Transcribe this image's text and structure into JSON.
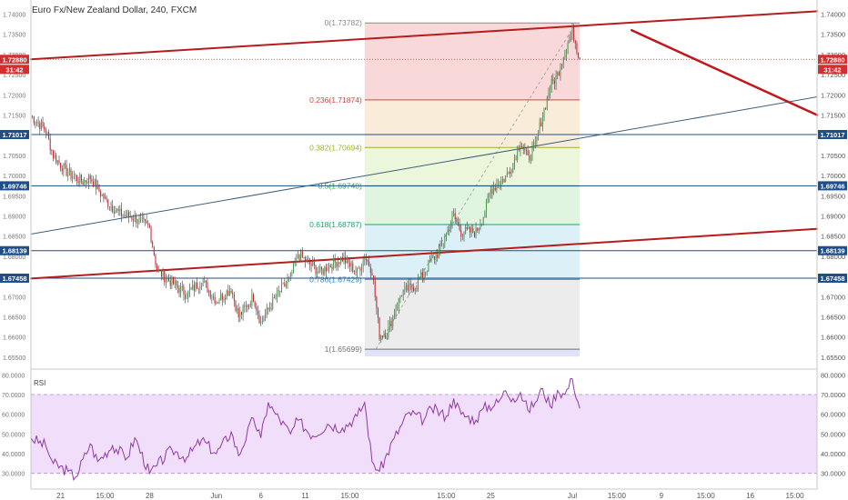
{
  "chart_data": {
    "type": "candlestick",
    "title": "Euro Fx/New Zealand Dollar, 240, FXCM",
    "price_axis": {
      "ylim": [
        1.6525,
        1.7435
      ],
      "ticks": [
        "1.65500",
        "1.66000",
        "1.66500",
        "1.67000",
        "1.67500",
        "1.68000",
        "1.68500",
        "1.69000",
        "1.69500",
        "1.70000",
        "1.70500",
        "1.71000",
        "1.71500",
        "1.72000",
        "1.72500",
        "1.73000",
        "1.73500",
        "1.74000"
      ]
    },
    "time_axis": {
      "labels": [
        {
          "t": 4,
          "text": "21"
        },
        {
          "t": 10,
          "text": "15:00"
        },
        {
          "t": 16,
          "text": "28"
        },
        {
          "t": 25,
          "text": "Jun"
        },
        {
          "t": 31,
          "text": "6"
        },
        {
          "t": 37,
          "text": "11"
        },
        {
          "t": 43,
          "text": "15:00"
        },
        {
          "t": 56,
          "text": "15:00"
        },
        {
          "t": 62,
          "text": "25"
        },
        {
          "t": 73,
          "text": "Jul"
        },
        {
          "t": 79,
          "text": "15:00"
        },
        {
          "t": 85,
          "text": "9"
        },
        {
          "t": 91,
          "text": "15:00"
        },
        {
          "t": 97,
          "text": "16"
        },
        {
          "t": 103,
          "text": "15:00"
        }
      ],
      "tmax": 106
    },
    "last_price": {
      "value": "1.72880",
      "countdown": "31:42",
      "price": 1.7288,
      "color": "#d32f2f"
    },
    "horizontal_levels": [
      {
        "price": 1.71017,
        "label": "1.71017",
        "color": "#1e4f8a"
      },
      {
        "price": 1.69746,
        "label": "1.69746",
        "color": "#1e4f8a"
      },
      {
        "price": 1.68139,
        "label": "1.68139",
        "color": "#1e4f8a"
      },
      {
        "price": 1.67458,
        "label": "1.67458",
        "color": "#1e4f8a"
      }
    ],
    "trend_lines": [
      {
        "t1": 0,
        "p1": 1.7288,
        "t2": 106,
        "p2": 1.7407,
        "color": "#b71c1c",
        "width": 2
      },
      {
        "t1": 0,
        "p1": 1.6745,
        "t2": 106,
        "p2": 1.6868,
        "color": "#b71c1c",
        "width": 2
      },
      {
        "t1": 0,
        "p1": 1.6855,
        "t2": 106,
        "p2": 1.7195,
        "color": "#3d5f7a",
        "width": 1
      },
      {
        "t1": 81,
        "p1": 1.736,
        "t2": 106,
        "p2": 1.715,
        "color": "#c0161c",
        "width": 2.5
      }
    ],
    "fibonacci": {
      "t_start": 45,
      "t_end": 74,
      "bands": [
        {
          "from": 0,
          "to": 0.236,
          "color": "#f2b8b8"
        },
        {
          "from": 0.236,
          "to": 0.382,
          "color": "#f4ddb9"
        },
        {
          "from": 0.382,
          "to": 0.5,
          "color": "#dcefbe"
        },
        {
          "from": 0.5,
          "to": 0.618,
          "color": "#c6ecc6"
        },
        {
          "from": 0.618,
          "to": 0.786,
          "color": "#bfe6f0"
        },
        {
          "from": 0.786,
          "to": 1,
          "color": "#dcdcdc"
        },
        {
          "from": 1,
          "to": 1.0225,
          "color": "#c8c8f2"
        }
      ],
      "levels": [
        {
          "ratio": 0,
          "label": "0(1.73782)",
          "price": 1.73782,
          "color": "#8a8a8a"
        },
        {
          "ratio": 0.236,
          "label": "0.236(1.71874)",
          "price": 1.71874,
          "color": "#d64545"
        },
        {
          "ratio": 0.382,
          "label": "0.382(1.70694)",
          "price": 1.70694,
          "color": "#9fb22a"
        },
        {
          "ratio": 0.5,
          "label": "0.5(1.69740)",
          "price": 1.6974,
          "color": "#3aa83a"
        },
        {
          "ratio": 0.618,
          "label": "0.618(1.68787)",
          "price": 1.68787,
          "color": "#22a06b"
        },
        {
          "ratio": 0.786,
          "label": "0.786(1.67429)",
          "price": 1.67429,
          "color": "#2a86c9"
        },
        {
          "ratio": 1,
          "label": "1(1.65699)",
          "price": 1.65699,
          "color": "#6f6f6f"
        }
      ],
      "diagonal": {
        "t1": 46.5,
        "p1": 1.65699,
        "t2": 73.5,
        "p2": 1.73782
      }
    },
    "ohlc_anchor_closes": [
      [
        0,
        1.7148
      ],
      [
        2,
        1.7112
      ],
      [
        3,
        1.705
      ],
      [
        5,
        1.7005
      ],
      [
        7,
        1.6985
      ],
      [
        8,
        1.6995
      ],
      [
        10,
        1.694
      ],
      [
        12,
        1.6905
      ],
      [
        14,
        1.6895
      ],
      [
        16,
        1.687
      ],
      [
        17,
        1.6765
      ],
      [
        19,
        1.6735
      ],
      [
        21,
        1.6705
      ],
      [
        23,
        1.674
      ],
      [
        25,
        1.669
      ],
      [
        27,
        1.672
      ],
      [
        28,
        1.665
      ],
      [
        30,
        1.67
      ],
      [
        31,
        1.6635
      ],
      [
        33,
        1.67
      ],
      [
        35,
        1.6745
      ],
      [
        36,
        1.6805
      ],
      [
        37,
        1.679
      ],
      [
        39,
        1.676
      ],
      [
        40,
        1.6775
      ],
      [
        42,
        1.6795
      ],
      [
        44,
        1.676
      ],
      [
        45,
        1.68
      ],
      [
        46,
        1.6765
      ],
      [
        47,
        1.6605
      ],
      [
        48,
        1.661
      ],
      [
        50,
        1.671
      ],
      [
        52,
        1.673
      ],
      [
        54,
        1.679
      ],
      [
        55,
        1.681
      ],
      [
        57,
        1.69
      ],
      [
        58,
        1.686
      ],
      [
        60,
        1.686
      ],
      [
        61,
        1.69
      ],
      [
        62,
        1.6965
      ],
      [
        64,
        1.6995
      ],
      [
        65,
        1.703
      ],
      [
        66,
        1.7085
      ],
      [
        67,
        1.704
      ],
      [
        68,
        1.7075
      ],
      [
        69,
        1.715
      ],
      [
        70,
        1.722
      ],
      [
        71,
        1.725
      ],
      [
        72,
        1.731
      ],
      [
        73,
        1.736
      ],
      [
        74,
        1.7288
      ]
    ],
    "candle_colors": {
      "up": "#43a047",
      "down": "#d81b2c",
      "wick": "#555555"
    },
    "rsi": {
      "label": "RSI",
      "ylim": [
        22,
        82
      ],
      "ticks": [
        "30.0000",
        "40.0000",
        "50.0000",
        "60.0000",
        "70.0000",
        "80.0000"
      ],
      "band": [
        30,
        70
      ],
      "color": "#8e3aa5",
      "band_color": "#f1defa",
      "anchors": [
        [
          0,
          48
        ],
        [
          2,
          44
        ],
        [
          3,
          35
        ],
        [
          5,
          31
        ],
        [
          6,
          28
        ],
        [
          8,
          45
        ],
        [
          9,
          36
        ],
        [
          11,
          44
        ],
        [
          13,
          38
        ],
        [
          14,
          48
        ],
        [
          16,
          30
        ],
        [
          17,
          34
        ],
        [
          19,
          42
        ],
        [
          21,
          38
        ],
        [
          23,
          47
        ],
        [
          25,
          40
        ],
        [
          27,
          51
        ],
        [
          28,
          39
        ],
        [
          30,
          58
        ],
        [
          31,
          48
        ],
        [
          32,
          66
        ],
        [
          33,
          60
        ],
        [
          35,
          50
        ],
        [
          36,
          57
        ],
        [
          38,
          49
        ],
        [
          40,
          55
        ],
        [
          42,
          53
        ],
        [
          44,
          59
        ],
        [
          45,
          66
        ],
        [
          46,
          36
        ],
        [
          47,
          31
        ],
        [
          49,
          48
        ],
        [
          51,
          61
        ],
        [
          53,
          57
        ],
        [
          54,
          63
        ],
        [
          56,
          59
        ],
        [
          57,
          68
        ],
        [
          58,
          60
        ],
        [
          60,
          57
        ],
        [
          61,
          63
        ],
        [
          63,
          66
        ],
        [
          64,
          72
        ],
        [
          65,
          68
        ],
        [
          66,
          71
        ],
        [
          67,
          62
        ],
        [
          68,
          66
        ],
        [
          69,
          73
        ],
        [
          70,
          64
        ],
        [
          71,
          72
        ],
        [
          72,
          70
        ],
        [
          73,
          78
        ],
        [
          74,
          63
        ]
      ]
    }
  }
}
